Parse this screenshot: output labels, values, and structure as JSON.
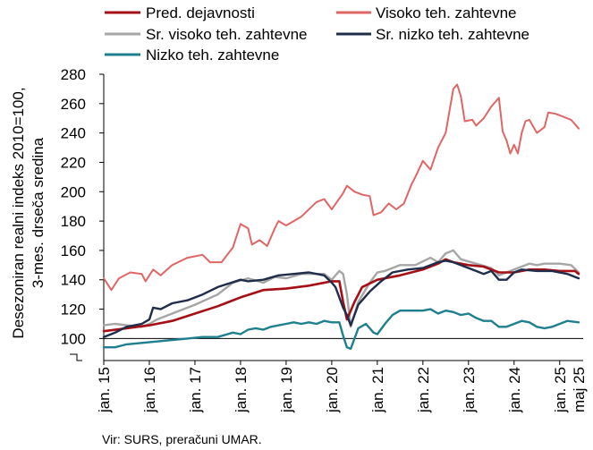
{
  "chart_data": {
    "type": "line",
    "ylabel": [
      "Desezoniran realni indeks 2010=100,",
      "3-mes. drsečа sredina"
    ],
    "ylim": [
      85,
      280
    ],
    "yticks": [
      100,
      120,
      140,
      160,
      180,
      200,
      220,
      240,
      260,
      280
    ],
    "reference_line": 100,
    "xticks": [
      "jan. 15",
      "jan. 16",
      "jan. 17",
      "jan. 18",
      "jan. 19",
      "jan. 20",
      "jan. 21",
      "jan. 22",
      "jan. 23",
      "jan. 24",
      "jan. 25",
      "maj 25"
    ],
    "x_start": "2015-01",
    "x_end": "2025-05",
    "source": "Vir: SURS, preračuni UMAR.",
    "legend_position": "top",
    "series": [
      {
        "name": "Pred. dejavnosti",
        "color": "#a50f15",
        "width": 2.6,
        "anchors": [
          [
            0,
            105
          ],
          [
            6,
            107
          ],
          [
            12,
            109
          ],
          [
            18,
            112
          ],
          [
            24,
            117
          ],
          [
            30,
            122
          ],
          [
            36,
            128
          ],
          [
            42,
            133
          ],
          [
            48,
            134
          ],
          [
            54,
            136
          ],
          [
            60,
            139
          ],
          [
            62,
            139
          ],
          [
            63,
            125
          ],
          [
            64,
            113
          ],
          [
            66,
            125
          ],
          [
            68,
            135
          ],
          [
            72,
            140
          ],
          [
            78,
            143
          ],
          [
            84,
            147
          ],
          [
            88,
            151
          ],
          [
            90,
            154
          ],
          [
            92,
            152
          ],
          [
            96,
            150
          ],
          [
            100,
            149
          ],
          [
            104,
            145
          ],
          [
            108,
            145
          ],
          [
            112,
            147
          ],
          [
            116,
            147
          ],
          [
            120,
            146
          ],
          [
            124,
            146
          ],
          [
            125,
            144
          ]
        ]
      },
      {
        "name": "Visoko teh. zahtevne",
        "color": "#e06666",
        "width": 2.0,
        "anchors": [
          [
            0,
            141
          ],
          [
            2,
            133
          ],
          [
            4,
            141
          ],
          [
            7,
            145
          ],
          [
            10,
            144
          ],
          [
            11,
            139
          ],
          [
            13,
            147
          ],
          [
            15,
            143
          ],
          [
            18,
            150
          ],
          [
            22,
            155
          ],
          [
            24,
            156
          ],
          [
            26,
            157
          ],
          [
            28,
            152
          ],
          [
            31,
            152
          ],
          [
            34,
            162
          ],
          [
            36,
            178
          ],
          [
            38,
            175
          ],
          [
            39,
            164
          ],
          [
            41,
            167
          ],
          [
            43,
            163
          ],
          [
            45,
            175
          ],
          [
            46,
            180
          ],
          [
            48,
            177
          ],
          [
            52,
            183
          ],
          [
            56,
            193
          ],
          [
            58,
            195
          ],
          [
            60,
            188
          ],
          [
            63,
            199
          ],
          [
            64,
            204
          ],
          [
            66,
            200
          ],
          [
            68,
            198
          ],
          [
            70,
            197
          ],
          [
            71,
            184
          ],
          [
            73,
            186
          ],
          [
            75,
            192
          ],
          [
            77,
            188
          ],
          [
            79,
            192
          ],
          [
            81,
            205
          ],
          [
            82,
            210
          ],
          [
            84,
            221
          ],
          [
            86,
            215
          ],
          [
            88,
            230
          ],
          [
            90,
            240
          ],
          [
            92,
            270
          ],
          [
            93,
            273
          ],
          [
            94,
            265
          ],
          [
            95,
            248
          ],
          [
            97,
            249
          ],
          [
            98,
            245
          ],
          [
            100,
            250
          ],
          [
            102,
            258
          ],
          [
            104,
            264
          ],
          [
            105,
            241
          ],
          [
            106,
            235
          ],
          [
            107,
            226
          ],
          [
            108,
            232
          ],
          [
            109,
            226
          ],
          [
            110,
            240
          ],
          [
            111,
            248
          ],
          [
            112,
            249
          ],
          [
            114,
            240
          ],
          [
            116,
            244
          ],
          [
            117,
            254
          ],
          [
            119,
            253
          ],
          [
            121,
            251
          ],
          [
            123,
            249
          ],
          [
            124,
            246
          ],
          [
            125,
            243
          ]
        ]
      },
      {
        "name": "Sr. visoko teh. zahtevne",
        "color": "#a6a6a6",
        "width": 2.4,
        "anchors": [
          [
            0,
            109
          ],
          [
            3,
            110
          ],
          [
            6,
            109
          ],
          [
            10,
            108
          ],
          [
            12,
            110
          ],
          [
            14,
            113
          ],
          [
            18,
            117
          ],
          [
            24,
            123
          ],
          [
            30,
            130
          ],
          [
            34,
            138
          ],
          [
            38,
            141
          ],
          [
            42,
            138
          ],
          [
            45,
            142
          ],
          [
            48,
            141
          ],
          [
            52,
            144
          ],
          [
            58,
            144
          ],
          [
            60,
            140
          ],
          [
            62,
            146
          ],
          [
            63,
            144
          ],
          [
            64,
            130
          ],
          [
            65,
            108
          ],
          [
            67,
            125
          ],
          [
            70,
            138
          ],
          [
            72,
            145
          ],
          [
            74,
            146
          ],
          [
            78,
            150
          ],
          [
            82,
            150
          ],
          [
            86,
            155
          ],
          [
            88,
            152
          ],
          [
            90,
            158
          ],
          [
            92,
            160
          ],
          [
            94,
            154
          ],
          [
            98,
            151
          ],
          [
            102,
            148
          ],
          [
            104,
            143
          ],
          [
            106,
            145
          ],
          [
            108,
            147
          ],
          [
            110,
            149
          ],
          [
            112,
            151
          ],
          [
            114,
            150
          ],
          [
            116,
            151
          ],
          [
            120,
            151
          ],
          [
            123,
            150
          ],
          [
            125,
            145
          ]
        ]
      },
      {
        "name": "Sr. nizko teh. zahtevne",
        "color": "#1f2d4a",
        "width": 2.4,
        "anchors": [
          [
            0,
            101
          ],
          [
            3,
            104
          ],
          [
            6,
            108
          ],
          [
            10,
            110
          ],
          [
            12,
            113
          ],
          [
            13,
            121
          ],
          [
            15,
            120
          ],
          [
            18,
            124
          ],
          [
            22,
            126
          ],
          [
            26,
            130
          ],
          [
            30,
            135
          ],
          [
            36,
            140
          ],
          [
            38,
            139
          ],
          [
            42,
            140
          ],
          [
            46,
            143
          ],
          [
            50,
            144
          ],
          [
            54,
            145
          ],
          [
            58,
            143
          ],
          [
            60,
            138
          ],
          [
            61,
            135
          ],
          [
            63,
            121
          ],
          [
            64,
            116
          ],
          [
            65,
            109
          ],
          [
            67,
            123
          ],
          [
            70,
            132
          ],
          [
            73,
            139
          ],
          [
            76,
            145
          ],
          [
            80,
            147
          ],
          [
            84,
            148
          ],
          [
            88,
            152
          ],
          [
            90,
            153
          ],
          [
            92,
            152
          ],
          [
            96,
            148
          ],
          [
            98,
            146
          ],
          [
            100,
            144
          ],
          [
            102,
            146
          ],
          [
            104,
            140
          ],
          [
            106,
            140
          ],
          [
            108,
            145
          ],
          [
            110,
            147
          ],
          [
            114,
            146
          ],
          [
            118,
            146
          ],
          [
            122,
            144
          ],
          [
            125,
            141
          ]
        ]
      },
      {
        "name": "Nizko teh. zahtevne",
        "color": "#1f7f8f",
        "width": 2.4,
        "anchors": [
          [
            0,
            94
          ],
          [
            3,
            94
          ],
          [
            6,
            96
          ],
          [
            10,
            97
          ],
          [
            14,
            98
          ],
          [
            18,
            99
          ],
          [
            22,
            100
          ],
          [
            26,
            101
          ],
          [
            30,
            101
          ],
          [
            34,
            104
          ],
          [
            36,
            103
          ],
          [
            38,
            106
          ],
          [
            40,
            107
          ],
          [
            42,
            106
          ],
          [
            44,
            108
          ],
          [
            48,
            110
          ],
          [
            50,
            111
          ],
          [
            52,
            110
          ],
          [
            54,
            111
          ],
          [
            56,
            110
          ],
          [
            58,
            112
          ],
          [
            60,
            111
          ],
          [
            62,
            111
          ],
          [
            63,
            102
          ],
          [
            64,
            94
          ],
          [
            65,
            93
          ],
          [
            67,
            107
          ],
          [
            69,
            110
          ],
          [
            71,
            104
          ],
          [
            72,
            103
          ],
          [
            74,
            110
          ],
          [
            76,
            116
          ],
          [
            78,
            119
          ],
          [
            84,
            119
          ],
          [
            86,
            120
          ],
          [
            88,
            117
          ],
          [
            90,
            119
          ],
          [
            92,
            118
          ],
          [
            94,
            116
          ],
          [
            96,
            117
          ],
          [
            98,
            114
          ],
          [
            100,
            112
          ],
          [
            102,
            112
          ],
          [
            104,
            108
          ],
          [
            106,
            108
          ],
          [
            108,
            110
          ],
          [
            110,
            112
          ],
          [
            112,
            111
          ],
          [
            114,
            108
          ],
          [
            116,
            107
          ],
          [
            118,
            108
          ],
          [
            120,
            110
          ],
          [
            122,
            112
          ],
          [
            125,
            111
          ]
        ]
      }
    ]
  }
}
